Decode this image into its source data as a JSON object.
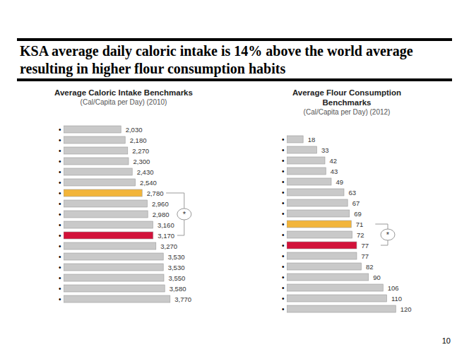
{
  "title": "KSA average daily caloric intake is 14% above the world average resulting in higher flour consumption habits",
  "page_number": "10",
  "chart_data": [
    {
      "type": "bar",
      "orientation": "horizontal",
      "title": "Average Caloric Intake Benchmarks",
      "subtitle": "(Cal/Capita per Day) (2010)",
      "categories": [
        "•",
        "•",
        "•",
        "•",
        "•",
        "•",
        "•",
        "•",
        "•",
        "•",
        "•",
        "•",
        "•",
        "•",
        "•",
        "•",
        "•"
      ],
      "values": [
        2030,
        2180,
        2270,
        2300,
        2430,
        2540,
        2780,
        2960,
        2980,
        3160,
        3170,
        3270,
        3530,
        3530,
        3550,
        3580,
        3770
      ],
      "value_labels": [
        "2,030",
        "2,180",
        "2,270",
        "2,300",
        "2,430",
        "2,540",
        "2,780",
        "2,960",
        "2,980",
        "3,160",
        "3,170",
        "3,270",
        "3,530",
        "3,530",
        "3,550",
        "3,580",
        "3,770"
      ],
      "colors": [
        "#c9c9c9",
        "#c9c9c9",
        "#c9c9c9",
        "#c9c9c9",
        "#c9c9c9",
        "#c9c9c9",
        "#f2b53a",
        "#c9c9c9",
        "#c9c9c9",
        "#c9c9c9",
        "#d2123a",
        "#c9c9c9",
        "#c9c9c9",
        "#c9c9c9",
        "#c9c9c9",
        "#c9c9c9",
        "#c9c9c9"
      ],
      "xlim": [
        0,
        4500
      ],
      "tick_labels": "y",
      "data_labels": true,
      "annotations": [
        "*"
      ]
    },
    {
      "type": "bar",
      "orientation": "horizontal",
      "title": "Average Flour Consumption Benchmarks",
      "subtitle": "(Cal/Capita per Day) (2012)",
      "categories": [
        "•",
        "•",
        "•",
        "•",
        "•",
        "•",
        "•",
        "•",
        "•",
        "•",
        "•",
        "•",
        "•",
        "•",
        "•",
        "•",
        "•"
      ],
      "values": [
        18,
        33,
        42,
        43,
        49,
        63,
        67,
        69,
        71,
        72,
        77,
        77,
        82,
        90,
        106,
        110,
        120
      ],
      "colors": [
        "#c9c9c9",
        "#c9c9c9",
        "#c9c9c9",
        "#c9c9c9",
        "#c9c9c9",
        "#c9c9c9",
        "#c9c9c9",
        "#c9c9c9",
        "#f2b53a",
        "#c9c9c9",
        "#d2123a",
        "#c9c9c9",
        "#c9c9c9",
        "#c9c9c9",
        "#c9c9c9",
        "#c9c9c9",
        "#c9c9c9"
      ],
      "xlim": [
        0,
        140
      ],
      "tick_labels": "y",
      "data_labels": true,
      "annotations": [
        "*"
      ]
    }
  ]
}
